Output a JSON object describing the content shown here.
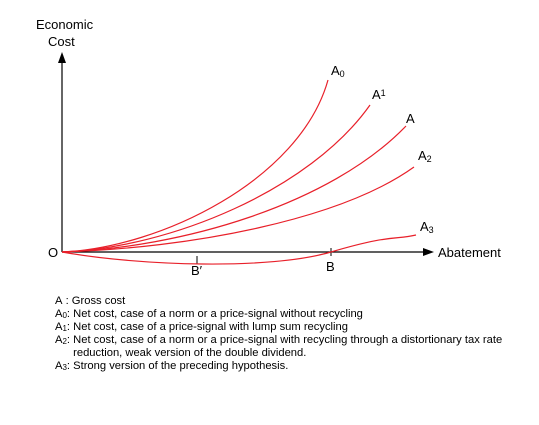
{
  "axes": {
    "y_label_line1": "Economic",
    "y_label_line2": "Cost",
    "x_label": "Abatement",
    "origin_label": "O",
    "b_label": "B",
    "b_prime_label": "B′"
  },
  "curves": [
    {
      "id": "A0",
      "base": "A",
      "sub": "0"
    },
    {
      "id": "A1",
      "base": "A",
      "sub": "1"
    },
    {
      "id": "A",
      "base": "A",
      "sub": ""
    },
    {
      "id": "A2",
      "base": "A",
      "sub": "2"
    },
    {
      "id": "A3",
      "base": "A",
      "sub": "3"
    }
  ],
  "colors": {
    "curve": "#e8202a",
    "axis": "#000000"
  },
  "legend": [
    {
      "key": "A",
      "sub": "",
      "sep": " : ",
      "text": "Gross cost"
    },
    {
      "key": "A",
      "sub": "0",
      "sep": ": ",
      "text": "Net cost, case of a norm or a price-signal without recycling"
    },
    {
      "key": "A",
      "sub": "1",
      "sep": ": ",
      "text": "Net cost, case of a price-signal with lump sum recycling"
    },
    {
      "key": "A",
      "sub": "2",
      "sep": ": ",
      "text": "Net cost, case of a norm or a price-signal with recycling through a distortionary tax rate reduction, weak version of the double dividend."
    },
    {
      "key": "A",
      "sub": "3",
      "sep": ": ",
      "text": "Strong version of the preceding hypothesis."
    }
  ]
}
